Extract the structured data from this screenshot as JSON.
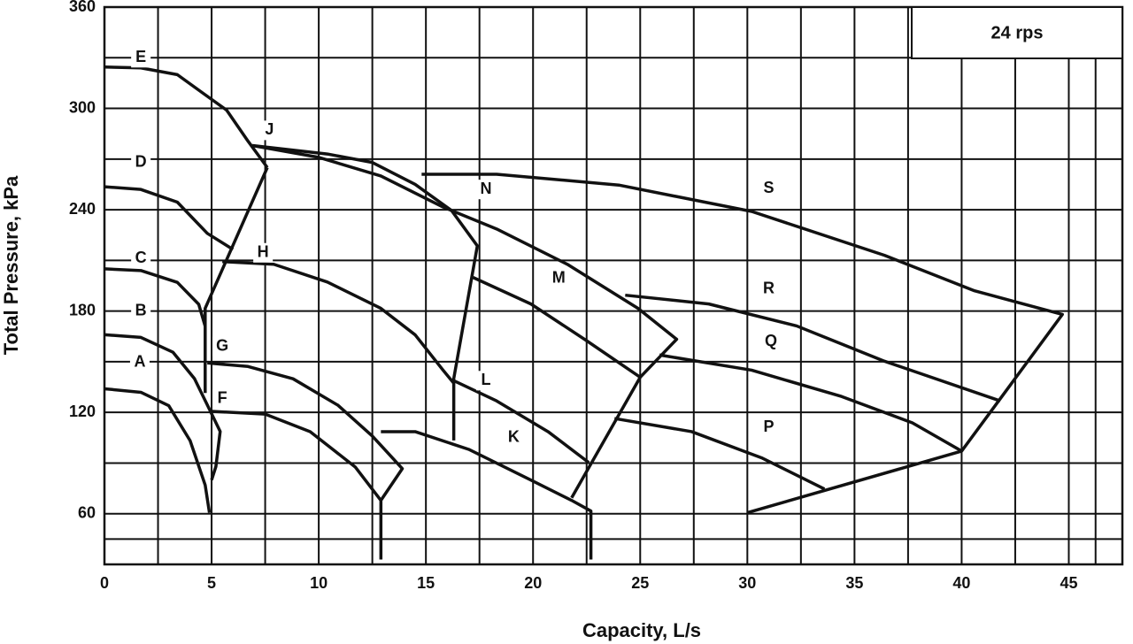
{
  "chart_data": {
    "type": "line",
    "xlabel": "Capacity, L/s",
    "ylabel": "Total Pressure, kPa",
    "speed_label": "24 rps",
    "xlim": [
      0,
      47.5
    ],
    "ylim": [
      30,
      360
    ],
    "xticks": [
      0,
      5,
      10,
      15,
      20,
      25,
      30,
      35,
      40,
      45
    ],
    "yticks": [
      60,
      120,
      180,
      240,
      300,
      360
    ],
    "grid": true,
    "color": "#111111",
    "series": [
      {
        "x": [
          0,
          1.7,
          3.4,
          4.6,
          5.7,
          6.7,
          7.6
        ],
        "values": [
          324.5,
          324,
          320,
          309,
          299,
          280.6,
          265
        ]
      },
      {
        "x": [
          0,
          1.7,
          3.4,
          4.8,
          6.0
        ],
        "values": [
          253.6,
          252,
          244.5,
          226,
          216.5
        ]
      },
      {
        "x": [
          0,
          1.7,
          3.4,
          4.4,
          4.7
        ],
        "values": [
          205,
          204,
          197,
          184,
          171
        ]
      },
      {
        "x": [
          0,
          1.7,
          3.2,
          4.2,
          4.8,
          5.4,
          5.2,
          5.0
        ],
        "values": [
          166,
          164.4,
          155.6,
          140,
          124.4,
          108.7,
          87.9,
          80
        ]
      },
      {
        "x": [
          0,
          1.7,
          3.0,
          4.0,
          4.7,
          4.9
        ],
        "values": [
          134,
          131.9,
          124,
          103.2,
          77,
          60.6
        ]
      },
      {
        "x": [
          7.6,
          4.7,
          4.7
        ],
        "values": [
          265,
          181.6,
          131.5
        ]
      },
      {
        "x": [
          6.9,
          10.4,
          12.5,
          14.5,
          16.2,
          17.4,
          16.3,
          16.3
        ],
        "values": [
          278,
          273,
          268,
          255,
          239.5,
          218.6,
          140,
          103.4
        ]
      },
      {
        "x": [
          6.9,
          10,
          12.9,
          15.8,
          18.3,
          21.6,
          24.9,
          26.7,
          25,
          21.8
        ],
        "values": [
          278,
          271,
          260,
          241.6,
          228.6,
          207.7,
          181.6,
          163.3,
          140.8,
          69.4
        ]
      },
      {
        "x": [
          14.8,
          18.3,
          24.0,
          30.2,
          36.4,
          40.6,
          44.7,
          40,
          30
        ],
        "values": [
          261,
          261,
          254.6,
          239,
          213,
          192,
          178,
          97.1,
          60.6
        ]
      },
      {
        "x": [
          5.5,
          7.9,
          10.4,
          12.9,
          14.5,
          15.8,
          16.3
        ],
        "values": [
          209.3,
          207.7,
          197.2,
          181.6,
          165.9,
          145,
          137.3
        ]
      },
      {
        "x": [
          4.8,
          6.7,
          8.8,
          10.9,
          12.5,
          13.9,
          12.9,
          12.9
        ],
        "values": [
          149.3,
          147.2,
          139.9,
          124.2,
          106,
          86.7,
          67.9,
          32.9
        ]
      },
      {
        "x": [
          5.0,
          7.5,
          9.6,
          11.7,
          12.9
        ],
        "values": [
          120.6,
          119,
          108.6,
          87.7,
          67.9
        ]
      },
      {
        "x": [
          17.2,
          19.9,
          22.4,
          25
        ],
        "values": [
          199.9,
          184.2,
          163.3,
          140.8
        ]
      },
      {
        "x": [
          16.3,
          18.3,
          20.7,
          22.6
        ],
        "values": [
          138.8,
          126.8,
          108.6,
          90.3
        ]
      },
      {
        "x": [
          12.9,
          14.5,
          17.0,
          19.9,
          21.8,
          22.7,
          22.7
        ],
        "values": [
          108.6,
          108.6,
          98.1,
          79.9,
          67.9,
          61.6,
          32.9
        ]
      },
      {
        "x": [
          24.3,
          28.2,
          32.3,
          36.4,
          41.8
        ],
        "values": [
          189.4,
          184.2,
          171.2,
          150.3,
          126.8
        ]
      },
      {
        "x": [
          25.9,
          30.2,
          34.4,
          37.7,
          40
        ],
        "values": [
          154,
          145,
          129.4,
          113.8,
          97.1
        ]
      },
      {
        "x": [
          23.8,
          27.4,
          30.7,
          33.6
        ],
        "values": [
          116.4,
          108.6,
          92.9,
          74.6
        ]
      }
    ],
    "annotations": [
      {
        "text": "E",
        "x": 1.7,
        "y": 330
      },
      {
        "text": "D",
        "x": 1.7,
        "y": 268
      },
      {
        "text": "C",
        "x": 1.7,
        "y": 211
      },
      {
        "text": "B",
        "x": 1.7,
        "y": 180
      },
      {
        "text": "A",
        "x": 1.65,
        "y": 149.6
      },
      {
        "text": "J",
        "x": 7.7,
        "y": 287
      },
      {
        "text": "H",
        "x": 7.4,
        "y": 214.5
      },
      {
        "text": "G",
        "x": 5.5,
        "y": 159
      },
      {
        "text": "F",
        "x": 5.5,
        "y": 128
      },
      {
        "text": "N",
        "x": 17.8,
        "y": 252
      },
      {
        "text": "M",
        "x": 21.2,
        "y": 199.3
      },
      {
        "text": "L",
        "x": 17.8,
        "y": 138.8
      },
      {
        "text": "K",
        "x": 19.1,
        "y": 105
      },
      {
        "text": "S",
        "x": 31,
        "y": 252.5
      },
      {
        "text": "R",
        "x": 31,
        "y": 193
      },
      {
        "text": "Q",
        "x": 31.1,
        "y": 162
      },
      {
        "text": "P",
        "x": 31,
        "y": 111
      }
    ]
  }
}
